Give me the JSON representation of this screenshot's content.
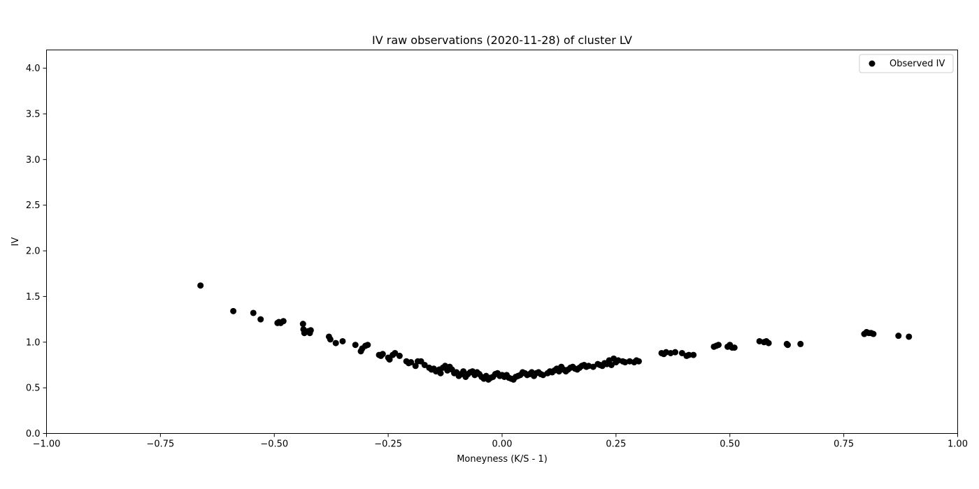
{
  "chart_data": {
    "type": "scatter",
    "title": "IV raw observations (2020-11-28) of cluster LV",
    "xlabel": "Moneyness (K/S - 1)",
    "ylabel": "IV",
    "xlim": [
      -1.0,
      1.0
    ],
    "ylim": [
      0.0,
      4.2
    ],
    "xticks": [
      -1.0,
      -0.75,
      -0.5,
      -0.25,
      0.0,
      0.25,
      0.5,
      0.75,
      1.0
    ],
    "xtick_labels": [
      "−1.00",
      "−0.75",
      "−0.50",
      "−0.25",
      "0.00",
      "0.25",
      "0.50",
      "0.75",
      "1.00"
    ],
    "yticks": [
      0.0,
      0.5,
      1.0,
      1.5,
      2.0,
      2.5,
      3.0,
      3.5,
      4.0
    ],
    "ytick_labels": [
      "0.0",
      "0.5",
      "1.0",
      "1.5",
      "2.0",
      "2.5",
      "3.0",
      "3.5",
      "4.0"
    ],
    "grid": false,
    "legend": {
      "position": "upper-right",
      "entries": [
        "Observed IV"
      ]
    },
    "marker_color": "#000000",
    "series": [
      {
        "name": "Observed IV",
        "points": [
          [
            -0.662,
            1.62
          ],
          [
            -0.59,
            1.34
          ],
          [
            -0.546,
            1.32
          ],
          [
            -0.53,
            1.25
          ],
          [
            -0.493,
            1.21
          ],
          [
            -0.49,
            1.22
          ],
          [
            -0.486,
            1.21
          ],
          [
            -0.48,
            1.23
          ],
          [
            -0.437,
            1.2
          ],
          [
            -0.436,
            1.14
          ],
          [
            -0.434,
            1.1
          ],
          [
            -0.426,
            1.12
          ],
          [
            -0.422,
            1.1
          ],
          [
            -0.42,
            1.13
          ],
          [
            -0.38,
            1.06
          ],
          [
            -0.377,
            1.03
          ],
          [
            -0.365,
            0.99
          ],
          [
            -0.35,
            1.01
          ],
          [
            -0.322,
            0.97
          ],
          [
            -0.31,
            0.9
          ],
          [
            -0.307,
            0.93
          ],
          [
            -0.3,
            0.96
          ],
          [
            -0.295,
            0.97
          ],
          [
            -0.27,
            0.86
          ],
          [
            -0.266,
            0.85
          ],
          [
            -0.262,
            0.87
          ],
          [
            -0.25,
            0.83
          ],
          [
            -0.247,
            0.81
          ],
          [
            -0.24,
            0.86
          ],
          [
            -0.235,
            0.88
          ],
          [
            -0.225,
            0.85
          ],
          [
            -0.21,
            0.79
          ],
          [
            -0.205,
            0.77
          ],
          [
            -0.2,
            0.78
          ],
          [
            -0.19,
            0.74
          ],
          [
            -0.185,
            0.79
          ],
          [
            -0.178,
            0.79
          ],
          [
            -0.17,
            0.75
          ],
          [
            -0.16,
            0.72
          ],
          [
            -0.155,
            0.7
          ],
          [
            -0.15,
            0.71
          ],
          [
            -0.145,
            0.68
          ],
          [
            -0.138,
            0.7
          ],
          [
            -0.135,
            0.66
          ],
          [
            -0.13,
            0.72
          ],
          [
            -0.125,
            0.74
          ],
          [
            -0.12,
            0.69
          ],
          [
            -0.115,
            0.73
          ],
          [
            -0.11,
            0.7
          ],
          [
            -0.105,
            0.66
          ],
          [
            -0.1,
            0.67
          ],
          [
            -0.095,
            0.63
          ],
          [
            -0.09,
            0.65
          ],
          [
            -0.085,
            0.68
          ],
          [
            -0.08,
            0.62
          ],
          [
            -0.075,
            0.65
          ],
          [
            -0.07,
            0.67
          ],
          [
            -0.065,
            0.68
          ],
          [
            -0.06,
            0.64
          ],
          [
            -0.055,
            0.67
          ],
          [
            -0.05,
            0.65
          ],
          [
            -0.045,
            0.62
          ],
          [
            -0.04,
            0.6
          ],
          [
            -0.035,
            0.63
          ],
          [
            -0.03,
            0.59
          ],
          [
            -0.025,
            0.61
          ],
          [
            -0.02,
            0.62
          ],
          [
            -0.015,
            0.65
          ],
          [
            -0.01,
            0.66
          ],
          [
            -0.005,
            0.63
          ],
          [
            0.0,
            0.64
          ],
          [
            0.005,
            0.62
          ],
          [
            0.01,
            0.64
          ],
          [
            0.015,
            0.61
          ],
          [
            0.02,
            0.6
          ],
          [
            0.025,
            0.59
          ],
          [
            0.03,
            0.62
          ],
          [
            0.035,
            0.63
          ],
          [
            0.04,
            0.64
          ],
          [
            0.045,
            0.67
          ],
          [
            0.05,
            0.66
          ],
          [
            0.055,
            0.64
          ],
          [
            0.06,
            0.65
          ],
          [
            0.065,
            0.67
          ],
          [
            0.07,
            0.63
          ],
          [
            0.075,
            0.66
          ],
          [
            0.08,
            0.67
          ],
          [
            0.085,
            0.65
          ],
          [
            0.09,
            0.64
          ],
          [
            0.1,
            0.66
          ],
          [
            0.105,
            0.68
          ],
          [
            0.11,
            0.67
          ],
          [
            0.115,
            0.69
          ],
          [
            0.12,
            0.71
          ],
          [
            0.125,
            0.68
          ],
          [
            0.13,
            0.73
          ],
          [
            0.135,
            0.7
          ],
          [
            0.14,
            0.68
          ],
          [
            0.145,
            0.7
          ],
          [
            0.15,
            0.72
          ],
          [
            0.155,
            0.73
          ],
          [
            0.16,
            0.71
          ],
          [
            0.165,
            0.7
          ],
          [
            0.17,
            0.72
          ],
          [
            0.175,
            0.74
          ],
          [
            0.18,
            0.75
          ],
          [
            0.185,
            0.73
          ],
          [
            0.19,
            0.74
          ],
          [
            0.2,
            0.73
          ],
          [
            0.21,
            0.76
          ],
          [
            0.215,
            0.75
          ],
          [
            0.22,
            0.74
          ],
          [
            0.225,
            0.77
          ],
          [
            0.23,
            0.76
          ],
          [
            0.235,
            0.8
          ],
          [
            0.24,
            0.75
          ],
          [
            0.245,
            0.82
          ],
          [
            0.25,
            0.78
          ],
          [
            0.255,
            0.8
          ],
          [
            0.265,
            0.79
          ],
          [
            0.27,
            0.78
          ],
          [
            0.28,
            0.79
          ],
          [
            0.29,
            0.78
          ],
          [
            0.295,
            0.8
          ],
          [
            0.3,
            0.79
          ],
          [
            0.35,
            0.88
          ],
          [
            0.355,
            0.87
          ],
          [
            0.36,
            0.89
          ],
          [
            0.37,
            0.88
          ],
          [
            0.38,
            0.89
          ],
          [
            0.395,
            0.88
          ],
          [
            0.405,
            0.85
          ],
          [
            0.41,
            0.86
          ],
          [
            0.42,
            0.86
          ],
          [
            0.465,
            0.95
          ],
          [
            0.47,
            0.96
          ],
          [
            0.475,
            0.97
          ],
          [
            0.495,
            0.95
          ],
          [
            0.5,
            0.97
          ],
          [
            0.505,
            0.94
          ],
          [
            0.51,
            0.94
          ],
          [
            0.565,
            1.01
          ],
          [
            0.575,
            1.0
          ],
          [
            0.58,
            1.01
          ],
          [
            0.585,
            0.99
          ],
          [
            0.625,
            0.98
          ],
          [
            0.627,
            0.97
          ],
          [
            0.655,
            0.98
          ],
          [
            0.795,
            1.09
          ],
          [
            0.8,
            1.11
          ],
          [
            0.805,
            1.1
          ],
          [
            0.81,
            1.1
          ],
          [
            0.815,
            1.09
          ],
          [
            0.87,
            1.07
          ],
          [
            0.893,
            1.06
          ]
        ]
      }
    ]
  }
}
